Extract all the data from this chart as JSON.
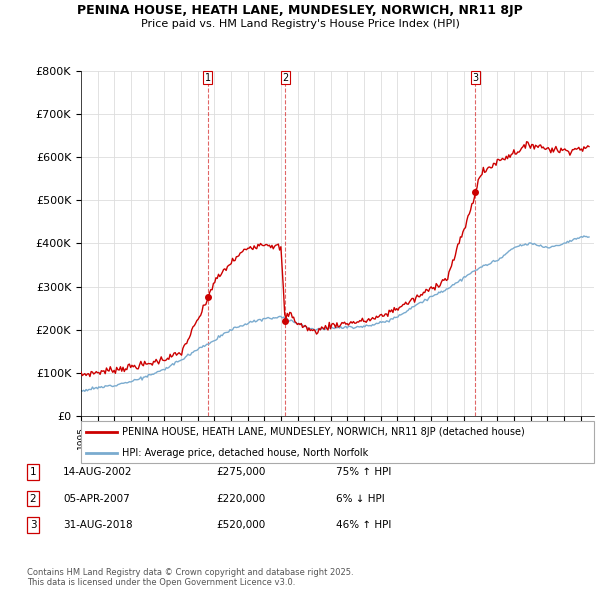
{
  "title": "PENINA HOUSE, HEATH LANE, MUNDESLEY, NORWICH, NR11 8JP",
  "subtitle": "Price paid vs. HM Land Registry's House Price Index (HPI)",
  "ylim": [
    0,
    800000
  ],
  "yticks": [
    0,
    100000,
    200000,
    300000,
    400000,
    500000,
    600000,
    700000,
    800000
  ],
  "ytick_labels": [
    "£0",
    "£100K",
    "£200K",
    "£300K",
    "£400K",
    "£500K",
    "£600K",
    "£700K",
    "£800K"
  ],
  "xlim": [
    1995,
    2025.8
  ],
  "transactions": [
    {
      "date_num": 2002.62,
      "price": 275000,
      "label": "1",
      "date_str": "14-AUG-2002",
      "pct": "75% ↑ HPI"
    },
    {
      "date_num": 2007.26,
      "price": 220000,
      "label": "2",
      "date_str": "05-APR-2007",
      "pct": "6% ↓ HPI"
    },
    {
      "date_num": 2018.66,
      "price": 520000,
      "label": "3",
      "date_str": "31-AUG-2018",
      "pct": "46% ↑ HPI"
    }
  ],
  "legend_label_red": "PENINA HOUSE, HEATH LANE, MUNDESLEY, NORWICH, NR11 8JP (detached house)",
  "legend_label_blue": "HPI: Average price, detached house, North Norfolk",
  "footer": "Contains HM Land Registry data © Crown copyright and database right 2025.\nThis data is licensed under the Open Government Licence v3.0.",
  "red_color": "#cc0000",
  "blue_color": "#7aabcf",
  "background_color": "#ffffff",
  "hpi_years": [
    1995,
    1996,
    1997,
    1998,
    1999,
    2000,
    2001,
    2002,
    2003,
    2004,
    2005,
    2006,
    2007,
    2008,
    2009,
    2010,
    2011,
    2012,
    2013,
    2014,
    2015,
    2016,
    2017,
    2018,
    2019,
    2020,
    2021,
    2022,
    2023,
    2024,
    2025
  ],
  "hpi_vals": [
    58000,
    65000,
    72000,
    80000,
    92000,
    108000,
    130000,
    155000,
    175000,
    200000,
    215000,
    225000,
    230000,
    215000,
    200000,
    205000,
    205000,
    208000,
    215000,
    230000,
    255000,
    275000,
    295000,
    320000,
    345000,
    360000,
    390000,
    400000,
    390000,
    400000,
    415000
  ],
  "red_knots": [
    1995,
    1999,
    2001,
    2002.5,
    2002.62,
    2003,
    2004,
    2005,
    2006,
    2007.0,
    2007.26,
    2007.5,
    2008,
    2009,
    2010,
    2011,
    2012,
    2013,
    2014,
    2015,
    2016,
    2017,
    2018.5,
    2018.66,
    2019,
    2020,
    2021,
    2022,
    2023,
    2024,
    2025
  ],
  "red_vals": [
    95000,
    120000,
    145000,
    260000,
    275000,
    310000,
    355000,
    390000,
    400000,
    390000,
    220000,
    240000,
    215000,
    195000,
    210000,
    215000,
    220000,
    230000,
    250000,
    270000,
    295000,
    320000,
    490000,
    520000,
    560000,
    590000,
    610000,
    630000,
    620000,
    615000,
    620000
  ]
}
